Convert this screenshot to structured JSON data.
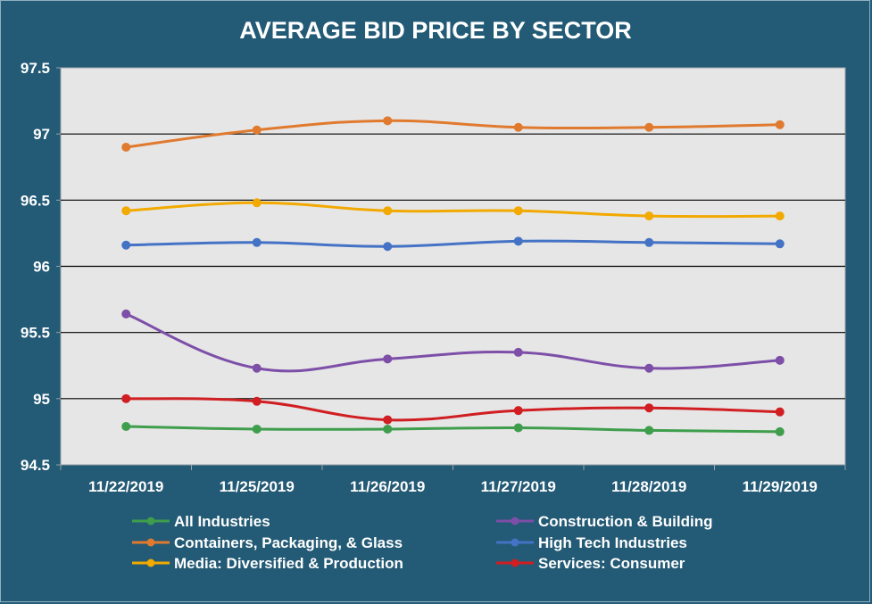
{
  "chart_data": {
    "type": "line",
    "title": "AVERAGE BID PRICE BY SECTOR",
    "xlabel": "",
    "ylabel": "",
    "categories": [
      "11/22/2019",
      "11/25/2019",
      "11/26/2019",
      "11/27/2019",
      "11/28/2019",
      "11/29/2019"
    ],
    "ylim": [
      94.5,
      97.5
    ],
    "yticks": [
      "94.5",
      "95",
      "95.5",
      "96",
      "96.5",
      "97",
      "97.5"
    ],
    "ytick_values": [
      94.5,
      95,
      95.5,
      96,
      96.5,
      97,
      97.5
    ],
    "grid": "horizontal",
    "legend_position": "bottom",
    "series": [
      {
        "name": "All Industries",
        "color": "#3e9e4c",
        "values": [
          94.79,
          94.77,
          94.77,
          94.78,
          94.76,
          94.75
        ]
      },
      {
        "name": "Construction & Building",
        "color": "#7d4fa8",
        "values": [
          95.64,
          95.23,
          95.3,
          95.35,
          95.23,
          95.29
        ]
      },
      {
        "name": "Containers, Packaging, & Glass",
        "color": "#e07a2e",
        "values": [
          96.9,
          97.03,
          97.1,
          97.05,
          97.05,
          97.07
        ]
      },
      {
        "name": "High Tech Industries",
        "color": "#4472c4",
        "values": [
          96.16,
          96.18,
          96.15,
          96.19,
          96.18,
          96.17
        ]
      },
      {
        "name": "Media: Diversified & Production",
        "color": "#f2a900",
        "values": [
          96.42,
          96.48,
          96.42,
          96.42,
          96.38,
          96.38
        ]
      },
      {
        "name": "Services: Consumer",
        "color": "#d01e22",
        "values": [
          95.0,
          94.98,
          94.84,
          94.91,
          94.93,
          94.9
        ]
      }
    ]
  }
}
